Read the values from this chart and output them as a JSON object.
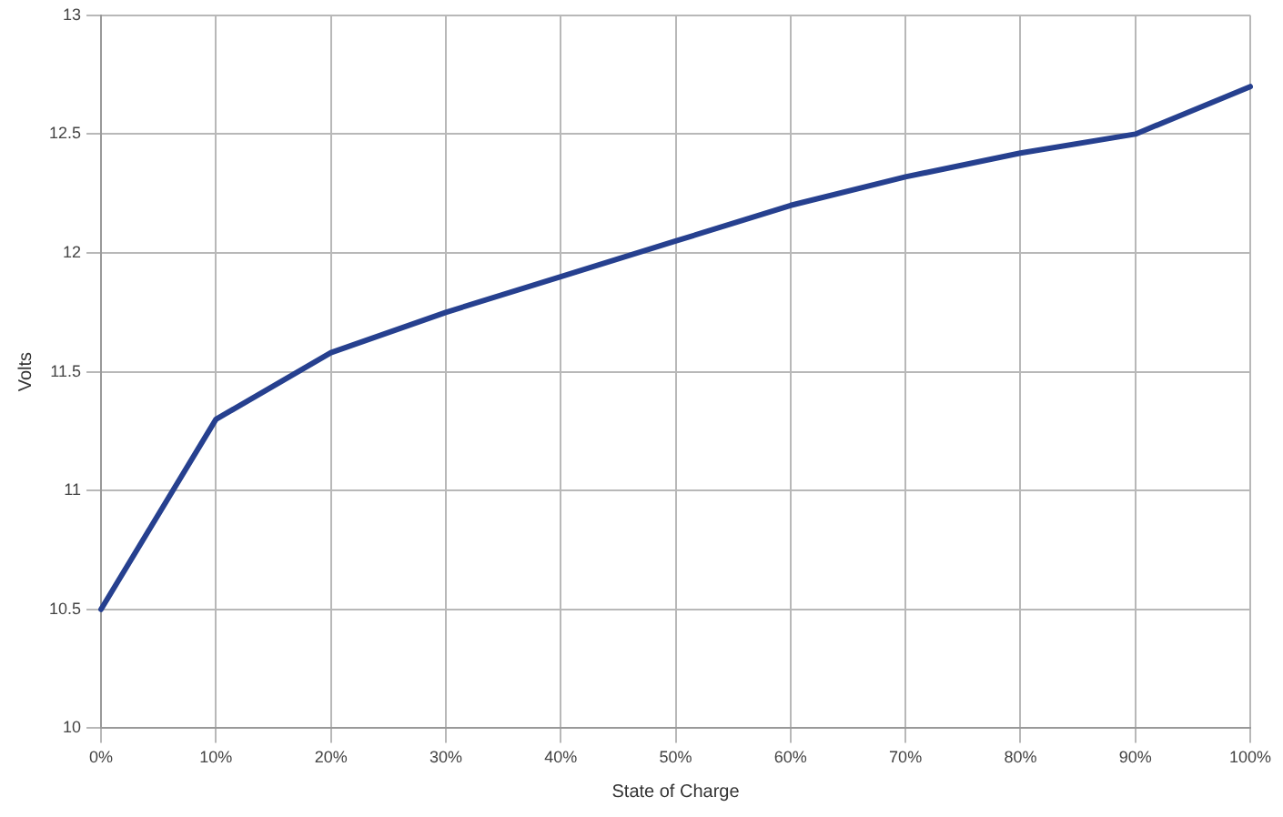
{
  "chart_data": {
    "type": "line",
    "xlabel": "State of Charge",
    "ylabel": "Volts",
    "categories": [
      "0%",
      "10%",
      "20%",
      "30%",
      "40%",
      "50%",
      "60%",
      "70%",
      "80%",
      "90%",
      "100%"
    ],
    "series": [
      {
        "color": "#26408f",
        "values": [
          10.5,
          11.3,
          11.58,
          11.75,
          11.9,
          12.05,
          12.2,
          12.32,
          12.42,
          12.5,
          12.7
        ]
      }
    ],
    "ylim": [
      10,
      13
    ],
    "yticks": [
      10,
      10.5,
      11,
      11.5,
      12,
      12.5,
      13
    ],
    "grid": true,
    "legend": false,
    "marker": "none",
    "line_style": "solid"
  }
}
